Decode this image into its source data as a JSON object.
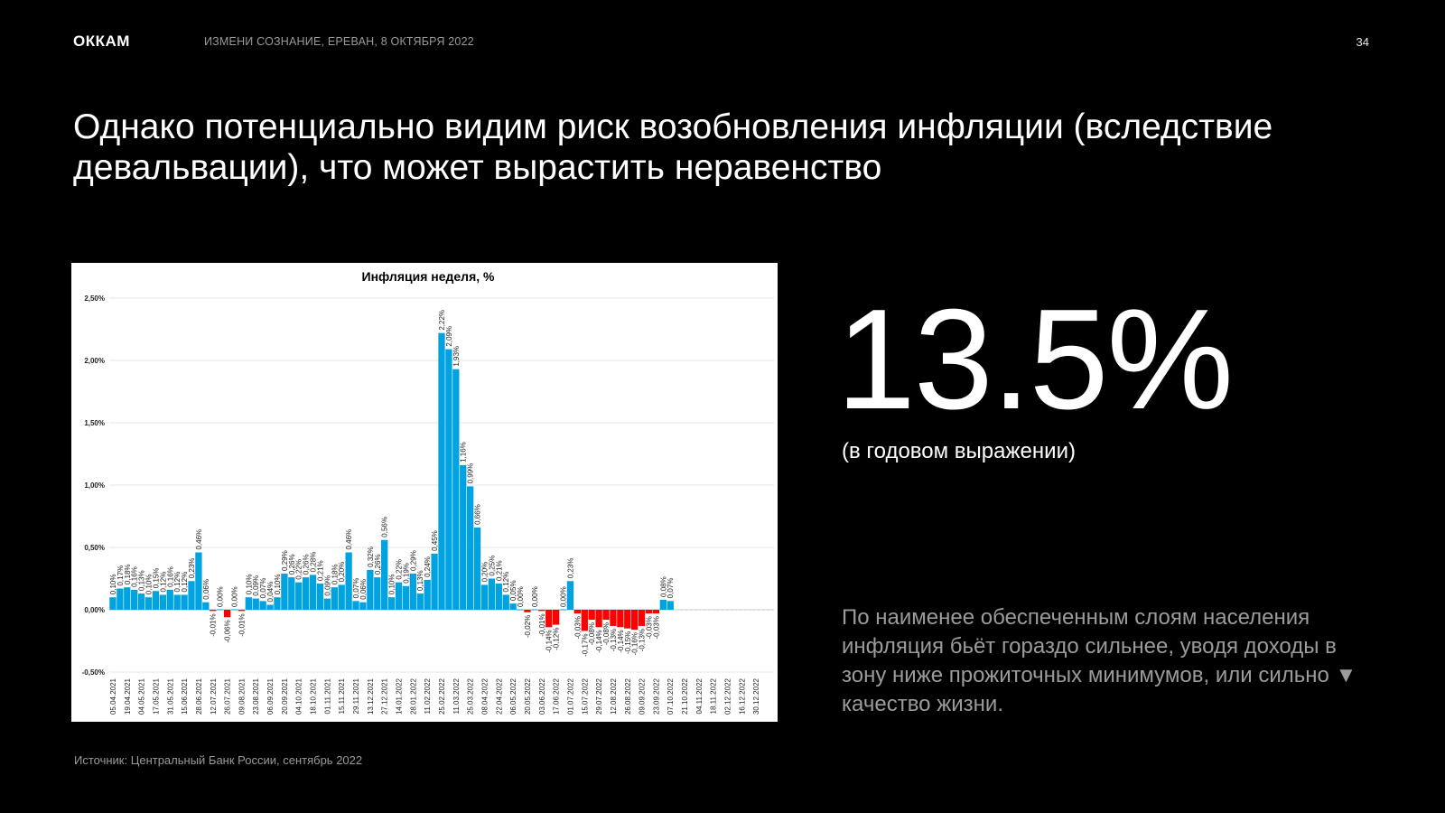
{
  "header": {
    "logo": "ОККАМ",
    "event": "ИЗМЕНИ СОЗНАНИЕ, ЕРЕВАН, 8 ОКТЯБРЯ 2022",
    "page_number": "34"
  },
  "headline": "Однако потенциально видим риск возобновления инфляции (вследствие девальвации), что может вырастить неравенство",
  "highlight": {
    "value": "13.5%",
    "caption": "(в годовом выражении)"
  },
  "note": "По наименее обеспеченным слоям населения инфляция бьёт гораздо сильнее, уводя доходы в зону ниже прожиточных минимумов, или сильно ▼ качество жизни.",
  "source": "Источник: Центральный Банк России, сентябрь 2022",
  "colors": {
    "background": "#000000",
    "positive_bar": "#00a3e0",
    "negative_bar": "#ff0000"
  },
  "chart_data": {
    "type": "bar",
    "title": "Инфляция неделя, %",
    "ylim": [
      -0.5,
      2.5
    ],
    "yticks": [
      "-0,50%",
      "0,00%",
      "0,50%",
      "1,00%",
      "1,50%",
      "2,00%",
      "2,50%"
    ],
    "yticks_values": [
      -0.5,
      0,
      0.5,
      1.0,
      1.5,
      2.0,
      2.5
    ],
    "grid": true,
    "tick_labels": [
      "05.04.2021",
      "19.04.2021",
      "04.05.2021",
      "17.05.2021",
      "31.05.2021",
      "15.06.2021",
      "28.06.2021",
      "12.07.2021",
      "26.07.2021",
      "09.08.2021",
      "23.08.2021",
      "06.09.2021",
      "20.09.2021",
      "04.10.2021",
      "18.10.2021",
      "01.11.2021",
      "15.11.2021",
      "29.11.2021",
      "13.12.2021",
      "27.12.2021",
      "14.01.2022",
      "28.01.2022",
      "11.02.2022",
      "25.02.2022",
      "11.03.2022",
      "25.03.2022",
      "08.04.2022",
      "22.04.2022",
      "06.05.2022",
      "20.05.2022",
      "03.06.2022",
      "17.06.2022",
      "01.07.2022",
      "15.07.2022",
      "29.07.2022",
      "12.08.2022",
      "26.08.2022",
      "09.09.2022",
      "23.09.2022",
      "07.10.2022",
      "21.10.2022",
      "04.11.2022",
      "18.11.2022",
      "02.12.2022",
      "16.12.2022",
      "30.12.2022"
    ],
    "values": [
      0.1,
      0.17,
      0.18,
      0.16,
      0.13,
      0.1,
      0.15,
      0.12,
      0.16,
      0.12,
      0.12,
      0.23,
      0.46,
      0.06,
      -0.01,
      0.0,
      -0.06,
      0.0,
      -0.01,
      0.1,
      0.09,
      0.07,
      0.04,
      0.1,
      0.29,
      0.26,
      0.22,
      0.26,
      0.28,
      0.21,
      0.09,
      0.18,
      0.2,
      0.46,
      0.07,
      0.06,
      0.32,
      0.26,
      0.56,
      0.1,
      0.22,
      0.19,
      0.29,
      0.13,
      0.24,
      0.45,
      2.22,
      2.09,
      1.93,
      1.16,
      0.99,
      0.66,
      0.2,
      0.25,
      0.21,
      0.12,
      0.05,
      0.0,
      -0.02,
      0.0,
      -0.01,
      -0.14,
      -0.12,
      0.0,
      0.23,
      -0.03,
      -0.17,
      -0.08,
      -0.14,
      -0.08,
      -0.13,
      -0.14,
      -0.15,
      -0.16,
      -0.13,
      -0.03,
      -0.03,
      0.08,
      0.07
    ],
    "data_labels": [
      "0,10%",
      "0,17%",
      "0,18%",
      "0,16%",
      "0,13%",
      "0,10%",
      "0,15%",
      "0,12%",
      "0,16%",
      "0,12%",
      "0,12%",
      "0,23%",
      "0,46%",
      "0,06%",
      "-0,01%",
      "0,00%",
      "-0,06%",
      "0,00%",
      "-0,01%",
      "0,10%",
      "0,09%",
      "0,07%",
      "0,04%",
      "0,10%",
      "0,29%",
      "0,26%",
      "0,22%",
      "0,26%",
      "0,28%",
      "0,21%",
      "0,09%",
      "0,18%",
      "0,20%",
      "0,46%",
      "0,07%",
      "0,06%",
      "0,32%",
      "0,26%",
      "0,56%",
      "0,10%",
      "0,22%",
      "0,19%",
      "0,29%",
      "0,13%",
      "0,24%",
      "0,45%",
      "2,22%",
      "2,09%",
      "1,93%",
      "1,16%",
      "0,99%",
      "0,66%",
      "0,20%",
      "0,25%",
      "0,21%",
      "0,12%",
      "0,05%",
      "0,00%",
      "-0,02%",
      "0,00%",
      "-0,01%",
      "-0,14%",
      "-0,12%",
      "0,00%",
      "0,23%",
      "-0,03%",
      "-0,17%",
      "-0,08%",
      "-0,14%",
      "-0,08%",
      "-0,13%",
      "-0,14%",
      "-0,15%",
      "-0,16%",
      "-0,13%",
      "-0,03%",
      "-0,03%",
      "0,08%",
      "0,07%"
    ],
    "total_slots": 93
  }
}
